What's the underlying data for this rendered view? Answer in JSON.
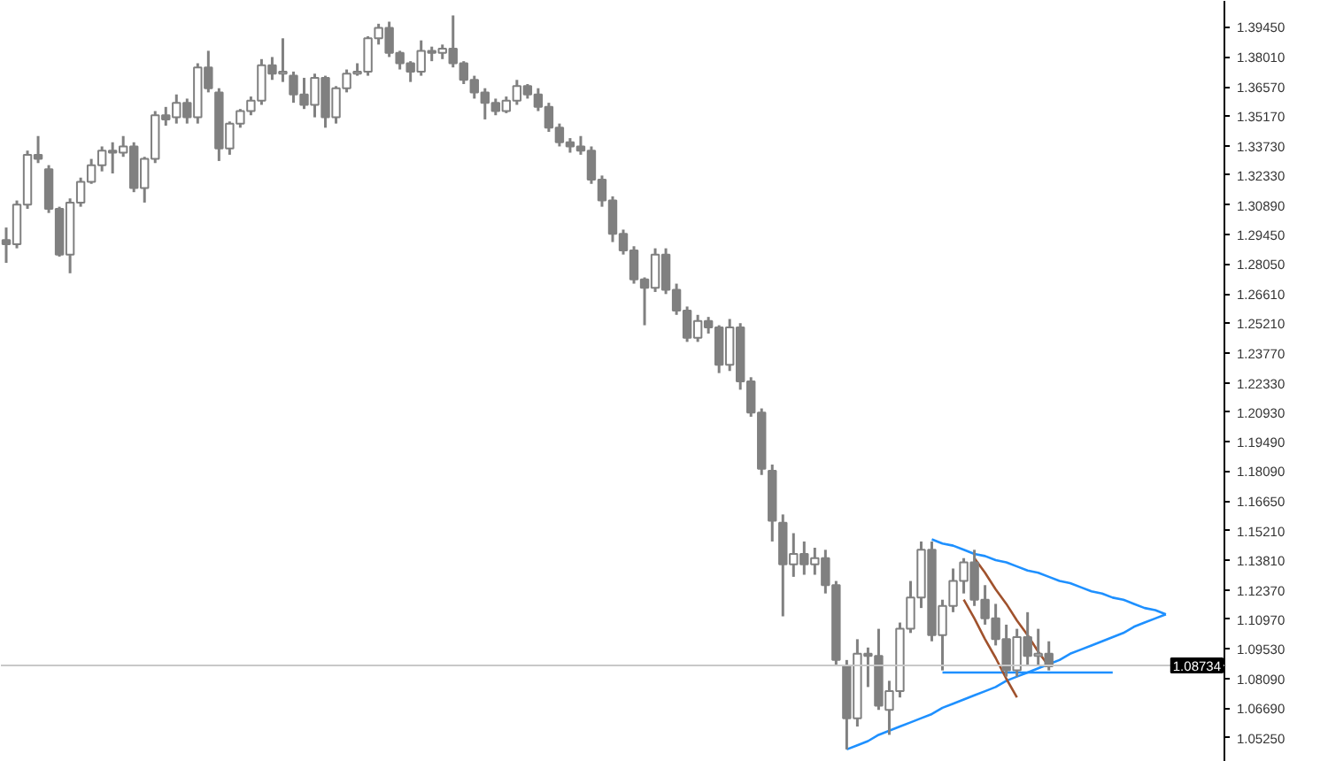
{
  "chart_data": {
    "type": "candlestick",
    "categories": [
      null,
      null,
      null,
      null,
      null,
      null,
      null,
      null,
      null,
      null,
      null,
      null,
      null,
      null,
      null,
      null,
      null,
      null,
      null,
      null,
      null,
      null,
      null,
      null,
      null,
      null,
      null,
      null,
      null,
      null,
      null,
      null,
      null,
      null,
      null,
      null,
      null,
      null,
      null,
      null,
      null,
      null,
      null,
      null,
      null,
      null,
      null,
      null,
      null,
      null,
      null,
      null,
      null,
      null,
      null,
      null,
      null,
      null,
      null,
      null,
      null,
      null,
      null,
      null,
      null,
      null,
      null,
      null,
      null,
      null,
      null,
      null,
      null,
      null,
      null,
      null,
      null,
      null,
      null,
      null,
      null,
      null,
      null,
      null,
      null,
      null,
      null,
      null,
      null,
      null,
      null,
      null,
      null,
      null,
      null,
      null,
      null,
      null,
      null,
      null,
      null,
      null,
      null,
      null,
      null,
      null,
      null,
      null,
      null,
      null,
      null,
      null,
      null,
      null,
      null
    ],
    "color": "#808080",
    "ohlc": [
      [
        1.292,
        1.298,
        1.281,
        1.29
      ],
      [
        1.29,
        1.311,
        1.288,
        1.309
      ],
      [
        1.309,
        1.335,
        1.307,
        1.333
      ],
      [
        1.333,
        1.342,
        1.329,
        1.331
      ],
      [
        1.326,
        1.328,
        1.305,
        1.307
      ],
      [
        1.307,
        1.308,
        1.284,
        1.285
      ],
      [
        1.285,
        1.312,
        1.276,
        1.31
      ],
      [
        1.31,
        1.322,
        1.308,
        1.32
      ],
      [
        1.32,
        1.331,
        1.319,
        1.328
      ],
      [
        1.328,
        1.337,
        1.325,
        1.335
      ],
      [
        1.335,
        1.339,
        1.324,
        1.334
      ],
      [
        1.334,
        1.342,
        1.332,
        1.337
      ],
      [
        1.337,
        1.339,
        1.315,
        1.317
      ],
      [
        1.317,
        1.332,
        1.31,
        1.331
      ],
      [
        1.331,
        1.354,
        1.329,
        1.352
      ],
      [
        1.352,
        1.356,
        1.347,
        1.35
      ],
      [
        1.351,
        1.362,
        1.348,
        1.358
      ],
      [
        1.358,
        1.36,
        1.348,
        1.351
      ],
      [
        1.351,
        1.377,
        1.348,
        1.375
      ],
      [
        1.375,
        1.383,
        1.363,
        1.365
      ],
      [
        1.363,
        1.365,
        1.33,
        1.336
      ],
      [
        1.336,
        1.349,
        1.333,
        1.348
      ],
      [
        1.348,
        1.355,
        1.346,
        1.354
      ],
      [
        1.354,
        1.361,
        1.352,
        1.359
      ],
      [
        1.359,
        1.379,
        1.357,
        1.376
      ],
      [
        1.376,
        1.38,
        1.369,
        1.372
      ],
      [
        1.372,
        1.389,
        1.368,
        1.373
      ],
      [
        1.371,
        1.373,
        1.358,
        1.362
      ],
      [
        1.362,
        1.37,
        1.355,
        1.357
      ],
      [
        1.357,
        1.372,
        1.351,
        1.37
      ],
      [
        1.37,
        1.371,
        1.346,
        1.351
      ],
      [
        1.351,
        1.366,
        1.348,
        1.365
      ],
      [
        1.365,
        1.374,
        1.363,
        1.372
      ],
      [
        1.372,
        1.377,
        1.371,
        1.373
      ],
      [
        1.373,
        1.39,
        1.371,
        1.389
      ],
      [
        1.389,
        1.396,
        1.386,
        1.394
      ],
      [
        1.394,
        1.397,
        1.38,
        1.382
      ],
      [
        1.382,
        1.383,
        1.374,
        1.377
      ],
      [
        1.377,
        1.378,
        1.368,
        1.373
      ],
      [
        1.373,
        1.388,
        1.371,
        1.383
      ],
      [
        1.383,
        1.385,
        1.378,
        1.382
      ],
      [
        1.382,
        1.386,
        1.379,
        1.384
      ],
      [
        1.384,
        1.4,
        1.375,
        1.377
      ],
      [
        1.377,
        1.378,
        1.367,
        1.369
      ],
      [
        1.369,
        1.371,
        1.36,
        1.363
      ],
      [
        1.363,
        1.365,
        1.35,
        1.358
      ],
      [
        1.358,
        1.36,
        1.352,
        1.354
      ],
      [
        1.354,
        1.361,
        1.353,
        1.359
      ],
      [
        1.359,
        1.369,
        1.357,
        1.366
      ],
      [
        1.366,
        1.367,
        1.36,
        1.362
      ],
      [
        1.362,
        1.365,
        1.354,
        1.356
      ],
      [
        1.356,
        1.358,
        1.344,
        1.346
      ],
      [
        1.346,
        1.348,
        1.337,
        1.339
      ],
      [
        1.339,
        1.341,
        1.334,
        1.337
      ],
      [
        1.337,
        1.342,
        1.333,
        1.335
      ],
      [
        1.335,
        1.337,
        1.319,
        1.321
      ],
      [
        1.321,
        1.323,
        1.308,
        1.311
      ],
      [
        1.311,
        1.313,
        1.291,
        1.295
      ],
      [
        1.295,
        1.297,
        1.285,
        1.287
      ],
      [
        1.287,
        1.289,
        1.271,
        1.273
      ],
      [
        1.273,
        1.274,
        1.251,
        1.269
      ],
      [
        1.269,
        1.288,
        1.267,
        1.285
      ],
      [
        1.285,
        1.288,
        1.266,
        1.268
      ],
      [
        1.268,
        1.271,
        1.256,
        1.258
      ],
      [
        1.258,
        1.26,
        1.243,
        1.245
      ],
      [
        1.245,
        1.256,
        1.243,
        1.253
      ],
      [
        1.253,
        1.255,
        1.247,
        1.25
      ],
      [
        1.25,
        1.251,
        1.228,
        1.232
      ],
      [
        1.232,
        1.254,
        1.229,
        1.25
      ],
      [
        1.25,
        1.252,
        1.22,
        1.224
      ],
      [
        1.224,
        1.226,
        1.207,
        1.209
      ],
      [
        1.209,
        1.211,
        1.179,
        1.182
      ],
      [
        1.181,
        1.184,
        1.147,
        1.157
      ],
      [
        1.156,
        1.16,
        1.111,
        1.136
      ],
      [
        1.136,
        1.151,
        1.13,
        1.141
      ],
      [
        1.141,
        1.147,
        1.131,
        1.136
      ],
      [
        1.136,
        1.144,
        1.131,
        1.139
      ],
      [
        1.139,
        1.143,
        1.122,
        1.126
      ],
      [
        1.126,
        1.128,
        1.087,
        1.09
      ],
      [
        1.087,
        1.09,
        1.047,
        1.062
      ],
      [
        1.062,
        1.1,
        1.058,
        1.093
      ],
      [
        1.093,
        1.096,
        1.077,
        1.092
      ],
      [
        1.092,
        1.105,
        1.066,
        1.068
      ],
      [
        1.066,
        1.08,
        1.054,
        1.075
      ],
      [
        1.075,
        1.108,
        1.072,
        1.105
      ],
      [
        1.105,
        1.128,
        1.103,
        1.12
      ],
      [
        1.12,
        1.147,
        1.115,
        1.143
      ],
      [
        1.143,
        1.147,
        1.099,
        1.102
      ],
      [
        1.102,
        1.119,
        1.085,
        1.116
      ],
      [
        1.116,
        1.134,
        1.113,
        1.128
      ],
      [
        1.128,
        1.139,
        1.122,
        1.137
      ],
      [
        1.137,
        1.143,
        1.116,
        1.119
      ],
      [
        1.119,
        1.126,
        1.107,
        1.11
      ],
      [
        1.11,
        1.117,
        1.097,
        1.1
      ],
      [
        1.1,
        1.107,
        1.082,
        1.085
      ],
      [
        1.085,
        1.105,
        1.082,
        1.101
      ],
      [
        1.101,
        1.113,
        1.087,
        1.092
      ],
      [
        1.092,
        1.105,
        1.087,
        1.093
      ],
      [
        1.093,
        1.099,
        1.085,
        1.087
      ],
      null,
      null,
      null,
      null,
      null,
      null,
      null,
      null,
      null,
      null,
      null,
      null,
      null,
      null,
      null,
      null
    ],
    "series": [
      {
        "type": "line",
        "color": "#1e90ff",
        "values": [
          null,
          null,
          null,
          null,
          null,
          null,
          null,
          null,
          null,
          null,
          null,
          null,
          null,
          null,
          null,
          null,
          null,
          null,
          null,
          null,
          null,
          null,
          null,
          null,
          null,
          null,
          null,
          null,
          null,
          null,
          null,
          null,
          null,
          null,
          null,
          null,
          null,
          null,
          null,
          null,
          null,
          null,
          null,
          null,
          null,
          null,
          null,
          null,
          null,
          null,
          null,
          null,
          null,
          null,
          null,
          null,
          null,
          null,
          null,
          null,
          null,
          null,
          null,
          null,
          null,
          null,
          null,
          null,
          null,
          null,
          null,
          null,
          null,
          null,
          null,
          null,
          null,
          null,
          null,
          null,
          null,
          null,
          null,
          null,
          null,
          null,
          null,
          1.148,
          1.146,
          1.145,
          1.143,
          1.141,
          1.14,
          1.138,
          1.137,
          1.135,
          1.133,
          1.132,
          1.13,
          1.128,
          1.127,
          1.125,
          1.123,
          1.122,
          1.12,
          1.119,
          1.117,
          1.115,
          1.114,
          1.112,
          null,
          null,
          null,
          null,
          null
        ]
      },
      {
        "type": "line",
        "color": "#1e90ff",
        "values": [
          null,
          null,
          null,
          null,
          null,
          null,
          null,
          null,
          null,
          null,
          null,
          null,
          null,
          null,
          null,
          null,
          null,
          null,
          null,
          null,
          null,
          null,
          null,
          null,
          null,
          null,
          null,
          null,
          null,
          null,
          null,
          null,
          null,
          null,
          null,
          null,
          null,
          null,
          null,
          null,
          null,
          null,
          null,
          null,
          null,
          null,
          null,
          null,
          null,
          null,
          null,
          null,
          null,
          null,
          null,
          null,
          null,
          null,
          null,
          null,
          null,
          null,
          null,
          null,
          null,
          null,
          null,
          null,
          null,
          null,
          null,
          null,
          null,
          null,
          null,
          null,
          null,
          null,
          null,
          1.047,
          1.049,
          1.051,
          1.054,
          1.056,
          1.058,
          1.06,
          1.062,
          1.064,
          1.067,
          1.069,
          1.071,
          1.073,
          1.075,
          1.077,
          1.08,
          1.082,
          1.084,
          1.086,
          1.088,
          1.09,
          1.093,
          1.095,
          1.097,
          1.099,
          1.101,
          1.103,
          1.106,
          1.108,
          1.11,
          1.112,
          null,
          null,
          null,
          null,
          null
        ]
      },
      {
        "type": "line",
        "color": "#1e90ff",
        "values": [
          null,
          null,
          null,
          null,
          null,
          null,
          null,
          null,
          null,
          null,
          null,
          null,
          null,
          null,
          null,
          null,
          null,
          null,
          null,
          null,
          null,
          null,
          null,
          null,
          null,
          null,
          null,
          null,
          null,
          null,
          null,
          null,
          null,
          null,
          null,
          null,
          null,
          null,
          null,
          null,
          null,
          null,
          null,
          null,
          null,
          null,
          null,
          null,
          null,
          null,
          null,
          null,
          null,
          null,
          null,
          null,
          null,
          null,
          null,
          null,
          null,
          null,
          null,
          null,
          null,
          null,
          null,
          null,
          null,
          null,
          null,
          null,
          null,
          null,
          null,
          null,
          null,
          null,
          null,
          null,
          null,
          null,
          null,
          null,
          null,
          null,
          null,
          null,
          1.084,
          1.084,
          1.084,
          1.084,
          1.084,
          1.084,
          1.084,
          1.084,
          1.084,
          1.084,
          1.084,
          1.084,
          1.084,
          1.084,
          1.084,
          1.084,
          1.084,
          null,
          null,
          null,
          null,
          null,
          null,
          null,
          null,
          null,
          null
        ]
      },
      {
        "type": "line",
        "color": "#a0522d",
        "values": [
          null,
          null,
          null,
          null,
          null,
          null,
          null,
          null,
          null,
          null,
          null,
          null,
          null,
          null,
          null,
          null,
          null,
          null,
          null,
          null,
          null,
          null,
          null,
          null,
          null,
          null,
          null,
          null,
          null,
          null,
          null,
          null,
          null,
          null,
          null,
          null,
          null,
          null,
          null,
          null,
          null,
          null,
          null,
          null,
          null,
          null,
          null,
          null,
          null,
          null,
          null,
          null,
          null,
          null,
          null,
          null,
          null,
          null,
          null,
          null,
          null,
          null,
          null,
          null,
          null,
          null,
          null,
          null,
          null,
          null,
          null,
          null,
          null,
          null,
          null,
          null,
          null,
          null,
          null,
          null,
          null,
          null,
          null,
          null,
          null,
          null,
          null,
          null,
          null,
          null,
          null,
          1.139,
          1.132,
          1.124,
          1.117,
          1.109,
          1.102,
          1.094,
          1.087,
          null,
          null,
          null,
          null,
          null,
          null,
          null,
          null,
          null,
          null,
          null,
          null,
          null,
          null,
          null,
          null
        ]
      },
      {
        "type": "line",
        "color": "#a0522d",
        "values": [
          null,
          null,
          null,
          null,
          null,
          null,
          null,
          null,
          null,
          null,
          null,
          null,
          null,
          null,
          null,
          null,
          null,
          null,
          null,
          null,
          null,
          null,
          null,
          null,
          null,
          null,
          null,
          null,
          null,
          null,
          null,
          null,
          null,
          null,
          null,
          null,
          null,
          null,
          null,
          null,
          null,
          null,
          null,
          null,
          null,
          null,
          null,
          null,
          null,
          null,
          null,
          null,
          null,
          null,
          null,
          null,
          null,
          null,
          null,
          null,
          null,
          null,
          null,
          null,
          null,
          null,
          null,
          null,
          null,
          null,
          null,
          null,
          null,
          null,
          null,
          null,
          null,
          null,
          null,
          null,
          null,
          null,
          null,
          null,
          null,
          null,
          null,
          null,
          null,
          null,
          1.119,
          1.11,
          1.1,
          1.091,
          1.081,
          1.072,
          null,
          null,
          null,
          null,
          null,
          null,
          null,
          null,
          null,
          null,
          null,
          null,
          null,
          null,
          null,
          null,
          null,
          null,
          null
        ]
      }
    ],
    "ylim": [
      1.041,
      1.407
    ],
    "yticks": [
      {
        "value": 1.3945,
        "label": "1.39450"
      },
      {
        "value": 1.3801,
        "label": "1.38010"
      },
      {
        "value": 1.3657,
        "label": "1.36570"
      },
      {
        "value": 1.3517,
        "label": "1.35170"
      },
      {
        "value": 1.3373,
        "label": "1.33730"
      },
      {
        "value": 1.3233,
        "label": "1.32330"
      },
      {
        "value": 1.3089,
        "label": "1.30890"
      },
      {
        "value": 1.2945,
        "label": "1.29450"
      },
      {
        "value": 1.2805,
        "label": "1.28050"
      },
      {
        "value": 1.2661,
        "label": "1.26610"
      },
      {
        "value": 1.2521,
        "label": "1.25210"
      },
      {
        "value": 1.2377,
        "label": "1.23770"
      },
      {
        "value": 1.2233,
        "label": "1.22330"
      },
      {
        "value": 1.2093,
        "label": "1.20930"
      },
      {
        "value": 1.1949,
        "label": "1.19490"
      },
      {
        "value": 1.1809,
        "label": "1.18090"
      },
      {
        "value": 1.1665,
        "label": "1.16650"
      },
      {
        "value": 1.1521,
        "label": "1.15210"
      },
      {
        "value": 1.1381,
        "label": "1.13810"
      },
      {
        "value": 1.1237,
        "label": "1.12370"
      },
      {
        "value": 1.1097,
        "label": "1.10970"
      },
      {
        "value": 1.0953,
        "label": "1.09530"
      },
      {
        "value": 1.0809,
        "label": "1.08090"
      },
      {
        "value": 1.0669,
        "label": "1.06690"
      },
      {
        "value": 1.0525,
        "label": "1.05250"
      }
    ],
    "ref_lines": [
      {
        "axis": "y",
        "value": 1.08734,
        "label": "1.08734",
        "color": "#c8c8c8"
      }
    ],
    "tick_labels": "y"
  }
}
